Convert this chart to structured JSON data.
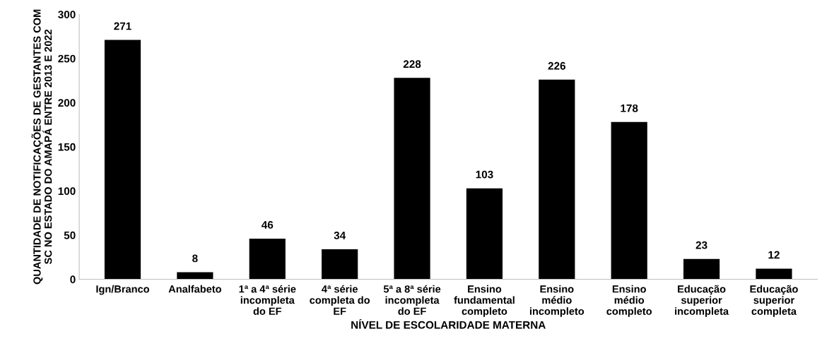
{
  "chart_data": {
    "type": "bar",
    "xlabel": "NÍVEL DE ESCOLARIDADE MATERNA",
    "ylabel": "QUANTIDADE DE NOTIFICAÇÕES DE GESTANTES COM\nSC NO ESTADO DO AMAPÁ ENTRE 2013 E 2022",
    "categories": [
      "Ign/Branco",
      "Analfabeto",
      "1ª a 4ª série\nincompleta\ndo EF",
      "4ª série\ncompleta do\nEF",
      "5ª a 8ª série\nincompleta\ndo EF",
      "Ensino\nfundamental\ncompleto",
      "Ensino\nmédio\nincompleto",
      "Ensino\nmédio\ncompleto",
      "Educação\nsuperior\nincompleta",
      "Educação\nsuperior\ncompleta"
    ],
    "values": [
      271,
      8,
      46,
      34,
      228,
      103,
      226,
      178,
      23,
      12
    ],
    "color": "#000000",
    "ylim": [
      0,
      300
    ],
    "yticks": [
      0,
      50,
      100,
      150,
      200,
      250,
      300
    ],
    "data_labels": true,
    "grid": false,
    "legend": false
  }
}
